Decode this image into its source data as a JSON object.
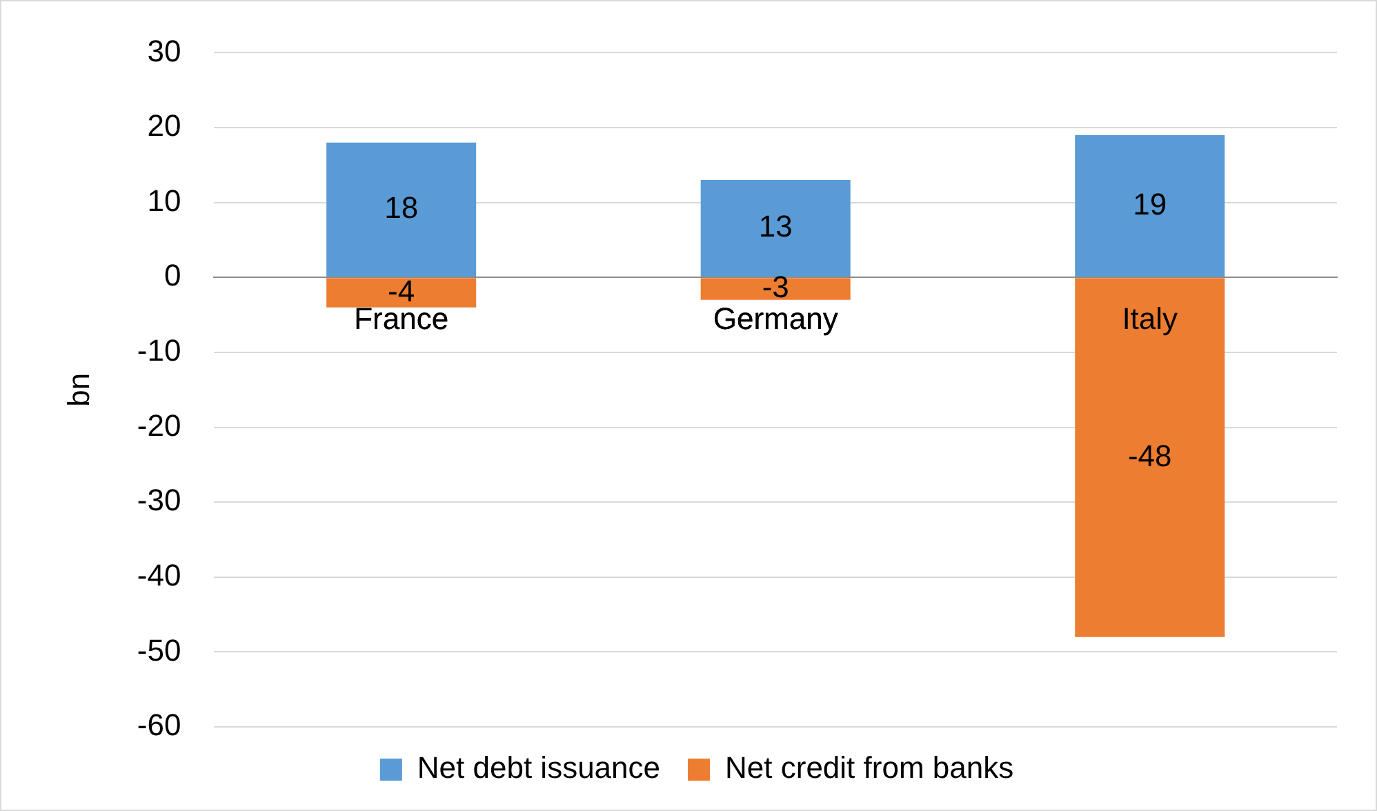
{
  "chart_data": {
    "type": "bar",
    "stacked": true,
    "categories": [
      "France",
      "Germany",
      "Italy"
    ],
    "series": [
      {
        "name": "Net debt issuance",
        "color": "#5b9bd5",
        "values": [
          18,
          13,
          19
        ]
      },
      {
        "name": "Net credit from banks",
        "color": "#ed7d31",
        "values": [
          -4,
          -3,
          -48
        ]
      }
    ],
    "ylim": [
      -60,
      30
    ],
    "yticks": [
      -60,
      -50,
      -40,
      -30,
      -20,
      -10,
      0,
      10,
      20,
      30
    ],
    "ylabel": "bn",
    "grid": "y",
    "legend": "bottom",
    "data_labels": true
  }
}
